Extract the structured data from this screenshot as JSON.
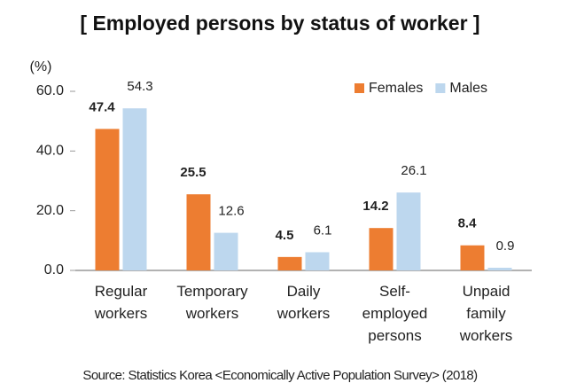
{
  "chart_data": {
    "type": "bar",
    "title": "[ Employed persons by status of worker ]",
    "y_label": "(%)",
    "categories": [
      [
        "Regular",
        "workers"
      ],
      [
        "Temporary",
        "workers"
      ],
      [
        "Daily",
        "workers"
      ],
      [
        "Self-",
        "employed",
        "persons"
      ],
      [
        "Unpaid",
        "family",
        "workers"
      ]
    ],
    "series": [
      {
        "name": "Females",
        "color": "#ed7d31",
        "values": [
          47.4,
          25.5,
          4.5,
          14.2,
          8.4
        ]
      },
      {
        "name": "Males",
        "color": "#bdd7ee",
        "values": [
          54.3,
          12.6,
          6.1,
          26.1,
          0.9
        ]
      }
    ],
    "ylim": [
      0,
      60
    ],
    "yticks": [
      {
        "value": 0,
        "label": "0.0"
      },
      {
        "value": 20,
        "label": "20.0"
      },
      {
        "value": 40,
        "label": "40.0"
      },
      {
        "value": 60,
        "label": "60.0"
      }
    ],
    "legend": "top-right",
    "source": "Source: Statistics Korea <Economically Active Population Survey> (2018)"
  }
}
